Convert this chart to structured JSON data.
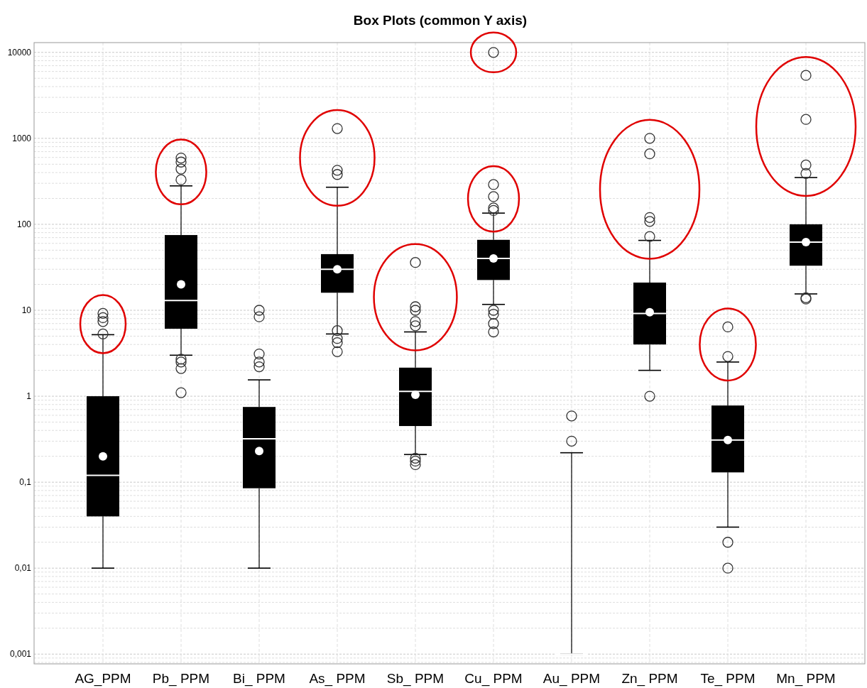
{
  "chart_data": {
    "type": "box",
    "title": "Box Plots (common Y axis)",
    "log": "y",
    "grid": true,
    "marker": "circle",
    "categories": [
      "AG_PPM",
      "Pb_ PPM",
      "Bi_ PPM",
      "As_ PPM",
      "Sb_ PPM",
      "Cu_ PPM",
      "Au_ PPM",
      "Zn_ PPM",
      "Te_ PPM",
      "Mn_ PPM"
    ],
    "boxes": [
      {
        "low": 0.01,
        "q1": 0.04,
        "median": 0.12,
        "q3": 1,
        "high": 5.2,
        "mean": 0.2,
        "outliers": [
          5.3,
          7.4,
          8.2,
          9.2
        ]
      },
      {
        "low": 3,
        "q1": 6.1,
        "median": 13,
        "q3": 75,
        "high": 280,
        "mean": 20,
        "outliers": [
          330,
          440,
          530,
          590,
          2.7,
          2.5,
          2.1,
          1.1
        ]
      },
      {
        "low": 0.01,
        "q1": 0.085,
        "median": 0.32,
        "q3": 0.75,
        "high": 1.55,
        "mean": 0.23,
        "outliers": [
          2.2,
          2.5,
          3.1,
          8.4,
          10
        ]
      },
      {
        "low": 5.3,
        "q1": 16,
        "median": 30,
        "q3": 45,
        "high": 270,
        "mean": 30,
        "outliers": [
          380,
          425,
          1300,
          5.8,
          4.7,
          4.2,
          3.3
        ]
      },
      {
        "low": 0.21,
        "q1": 0.45,
        "median": 1.14,
        "q3": 2.15,
        "high": 5.6,
        "mean": 1.04,
        "outliers": [
          6.6,
          7.4,
          10,
          11,
          36,
          0.19,
          0.176,
          0.16
        ]
      },
      {
        "low": 11.7,
        "q1": 22.5,
        "median": 40,
        "q3": 66,
        "high": 135,
        "mean": 40,
        "outliers": [
          145,
          155,
          210,
          290,
          10000,
          10,
          9,
          7,
          5.6
        ]
      },
      {
        "low": 0.001,
        "q1": 0.001,
        "median": 0.001,
        "q3": 0.001,
        "high": 0.22,
        "outliers": [
          0.3,
          0.59
        ]
      },
      {
        "low": 2,
        "q1": 4,
        "median": 9.2,
        "q3": 21,
        "high": 65,
        "mean": 9.5,
        "outliers": [
          72,
          108,
          120,
          660,
          1000,
          1
        ]
      },
      {
        "low": 0.03,
        "q1": 0.13,
        "median": 0.31,
        "q3": 0.78,
        "high": 2.5,
        "mean": 0.31,
        "outliers": [
          2.9,
          6.4,
          0.02,
          0.01
        ]
      },
      {
        "low": 15.5,
        "q1": 33,
        "median": 62,
        "q3": 100,
        "high": 350,
        "mean": 62,
        "outliers": [
          390,
          490,
          1660,
          5400,
          14,
          13.5
        ]
      }
    ],
    "ylim": [
      0.00077,
      13000
    ],
    "yticks": [
      {
        "value": 0.0008,
        "label": null
      },
      {
        "value": 0.0009,
        "label": null
      },
      {
        "value": 0.001,
        "label": "0,001"
      },
      {
        "value": 0.002,
        "label": null
      },
      {
        "value": 0.003,
        "label": null
      },
      {
        "value": 0.004,
        "label": null
      },
      {
        "value": 0.005,
        "label": null
      },
      {
        "value": 0.006,
        "label": null
      },
      {
        "value": 0.007,
        "label": null
      },
      {
        "value": 0.008,
        "label": null
      },
      {
        "value": 0.009,
        "label": null
      },
      {
        "value": 0.01,
        "label": "0,01"
      },
      {
        "value": 0.02,
        "label": null
      },
      {
        "value": 0.03,
        "label": null
      },
      {
        "value": 0.04,
        "label": null
      },
      {
        "value": 0.05,
        "label": null
      },
      {
        "value": 0.06,
        "label": null
      },
      {
        "value": 0.07,
        "label": null
      },
      {
        "value": 0.08,
        "label": null
      },
      {
        "value": 0.09,
        "label": null
      },
      {
        "value": 0.1,
        "label": "0,1"
      },
      {
        "value": 0.2,
        "label": null
      },
      {
        "value": 0.3,
        "label": null
      },
      {
        "value": 0.4,
        "label": null
      },
      {
        "value": 0.5,
        "label": null
      },
      {
        "value": 0.6,
        "label": null
      },
      {
        "value": 0.7,
        "label": null
      },
      {
        "value": 0.8,
        "label": null
      },
      {
        "value": 0.9,
        "label": null
      },
      1,
      {
        "value": 2,
        "label": null
      },
      {
        "value": 3,
        "label": null
      },
      {
        "value": 4,
        "label": null
      },
      {
        "value": 5,
        "label": null
      },
      {
        "value": 6,
        "label": null
      },
      {
        "value": 7,
        "label": null
      },
      {
        "value": 8,
        "label": null
      },
      {
        "value": 9,
        "label": null
      },
      10,
      {
        "value": 20,
        "label": null
      },
      {
        "value": 30,
        "label": null
      },
      {
        "value": 40,
        "label": null
      },
      {
        "value": 50,
        "label": null
      },
      {
        "value": 60,
        "label": null
      },
      {
        "value": 70,
        "label": null
      },
      {
        "value": 80,
        "label": null
      },
      {
        "value": 90,
        "label": null
      },
      100,
      {
        "value": 200,
        "label": null
      },
      {
        "value": 300,
        "label": null
      },
      {
        "value": 400,
        "label": null
      },
      {
        "value": 500,
        "label": null
      },
      {
        "value": 600,
        "label": null
      },
      {
        "value": 700,
        "label": null
      },
      {
        "value": 800,
        "label": null
      },
      {
        "value": 900,
        "label": null
      },
      1000,
      {
        "value": 2000,
        "label": null
      },
      {
        "value": 3000,
        "label": null
      },
      {
        "value": 4000,
        "label": null
      },
      {
        "value": 5000,
        "label": null
      },
      {
        "value": 6000,
        "label": null
      },
      {
        "value": 7000,
        "label": null
      },
      {
        "value": 8000,
        "label": null
      },
      {
        "value": 9000,
        "label": null
      },
      10000
    ]
  }
}
